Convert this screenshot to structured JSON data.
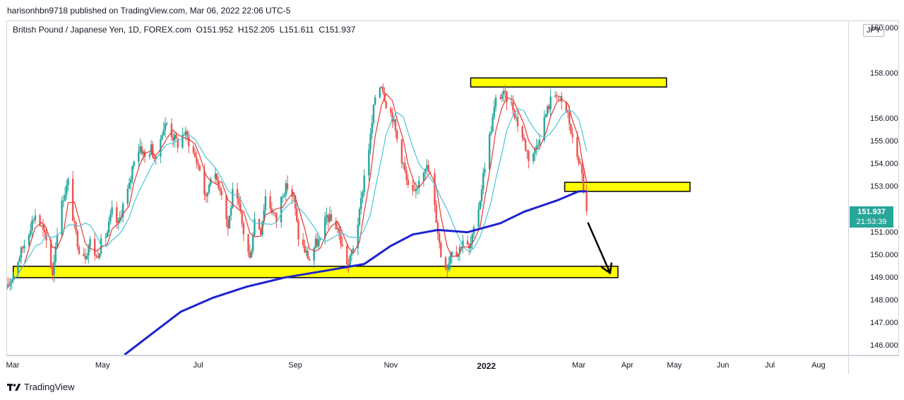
{
  "header": {
    "published_by": "harisonhbn9718 published on TradingView.com, Mar 06, 2022 22:06 UTC-5"
  },
  "legend": {
    "symbol": "British Pound / Japanese Yen, 1D, FOREX.com",
    "ohlc": "O151.952  H152.205  L151.611  C151.937"
  },
  "currency_label": "JPY",
  "last_price": {
    "value": "151.937",
    "countdown": "21:53:39",
    "color": "#26a69a"
  },
  "branding": "TradingView",
  "colors": {
    "up": "#26a69a",
    "down": "#ef5350",
    "ema_fast": "#e53935",
    "ema_slow": "#4dc4d8",
    "ma_long": "#1e22d0",
    "zone_fill": "#ffff00",
    "zone_stroke": "#000000"
  },
  "chart_data": {
    "type": "candlestick",
    "title": "British Pound / Japanese Yen, 1D, FOREX.com",
    "y_axis": {
      "ticks": [
        "160.000",
        "158.000",
        "156.000",
        "155.000",
        "154.000",
        "153.000",
        "151.000",
        "150.000",
        "149.000",
        "148.000",
        "147.000",
        "146.000"
      ],
      "ylim": [
        145.6,
        160.3
      ]
    },
    "x_axis": {
      "ticks": [
        {
          "label": "Mar",
          "date": "2021-03-01",
          "bold": false
        },
        {
          "label": "May",
          "date": "2021-05-01",
          "bold": false
        },
        {
          "label": "Jul",
          "date": "2021-07-01",
          "bold": false
        },
        {
          "label": "Sep",
          "date": "2021-09-01",
          "bold": false
        },
        {
          "label": "Nov",
          "date": "2021-11-01",
          "bold": false
        },
        {
          "label": "2022",
          "date": "2022-01-01",
          "bold": true
        },
        {
          "label": "Mar",
          "date": "2022-03-01",
          "bold": false
        },
        {
          "label": "Apr",
          "date": "2022-04-01",
          "bold": false
        },
        {
          "label": "May",
          "date": "2022-05-01",
          "bold": false
        },
        {
          "label": "Jun",
          "date": "2022-06-01",
          "bold": false
        },
        {
          "label": "Jul",
          "date": "2022-07-01",
          "bold": false
        },
        {
          "label": "Aug",
          "date": "2022-08-01",
          "bold": false
        }
      ],
      "range": [
        "2021-03-01",
        "2022-08-20"
      ]
    },
    "closes": [
      [
        "2021-03-01",
        148.5
      ],
      [
        "2021-03-08",
        149.8
      ],
      [
        "2021-03-12",
        150.5
      ],
      [
        "2021-03-16",
        151.3
      ],
      [
        "2021-03-19",
        151.8
      ],
      [
        "2021-03-23",
        151.2
      ],
      [
        "2021-03-26",
        150.6
      ],
      [
        "2021-03-30",
        149.2
      ],
      [
        "2021-04-02",
        151.1
      ],
      [
        "2021-04-06",
        152.6
      ],
      [
        "2021-04-09",
        153.2
      ],
      [
        "2021-04-13",
        151.2
      ],
      [
        "2021-04-16",
        150.3
      ],
      [
        "2021-04-20",
        150.0
      ],
      [
        "2021-04-23",
        150.6
      ],
      [
        "2021-04-27",
        149.9
      ],
      [
        "2021-04-30",
        150.5
      ],
      [
        "2021-05-04",
        151.0
      ],
      [
        "2021-05-07",
        151.9
      ],
      [
        "2021-05-11",
        151.3
      ],
      [
        "2021-05-14",
        152.2
      ],
      [
        "2021-05-18",
        153.0
      ],
      [
        "2021-05-21",
        154.3
      ],
      [
        "2021-05-25",
        154.8
      ],
      [
        "2021-05-28",
        154.3
      ],
      [
        "2021-06-01",
        154.7
      ],
      [
        "2021-06-04",
        154.1
      ],
      [
        "2021-06-08",
        155.5
      ],
      [
        "2021-06-11",
        155.8
      ],
      [
        "2021-06-15",
        155.2
      ],
      [
        "2021-06-18",
        154.9
      ],
      [
        "2021-06-22",
        155.4
      ],
      [
        "2021-06-25",
        155.0
      ],
      [
        "2021-06-29",
        154.3
      ],
      [
        "2021-07-02",
        153.8
      ],
      [
        "2021-07-06",
        152.4
      ],
      [
        "2021-07-09",
        153.6
      ],
      [
        "2021-07-13",
        153.3
      ],
      [
        "2021-07-16",
        152.8
      ],
      [
        "2021-07-20",
        151.2
      ],
      [
        "2021-07-23",
        152.7
      ],
      [
        "2021-07-27",
        152.1
      ],
      [
        "2021-07-30",
        151.0
      ],
      [
        "2021-08-03",
        149.8
      ],
      [
        "2021-08-06",
        151.6
      ],
      [
        "2021-08-10",
        151.1
      ],
      [
        "2021-08-13",
        152.6
      ],
      [
        "2021-08-17",
        152.0
      ],
      [
        "2021-08-20",
        151.5
      ],
      [
        "2021-08-24",
        152.8
      ],
      [
        "2021-08-27",
        153.0
      ],
      [
        "2021-08-31",
        152.5
      ],
      [
        "2021-09-03",
        150.8
      ],
      [
        "2021-09-07",
        150.2
      ],
      [
        "2021-09-10",
        149.8
      ],
      [
        "2021-09-14",
        150.5
      ],
      [
        "2021-09-17",
        150.6
      ],
      [
        "2021-09-21",
        151.7
      ],
      [
        "2021-09-24",
        151.5
      ],
      [
        "2021-09-28",
        151.2
      ],
      [
        "2021-10-01",
        150.3
      ],
      [
        "2021-10-05",
        149.5
      ],
      [
        "2021-10-08",
        150.4
      ],
      [
        "2021-10-12",
        151.8
      ],
      [
        "2021-10-15",
        153.5
      ],
      [
        "2021-10-19",
        155.2
      ],
      [
        "2021-10-22",
        157.0
      ],
      [
        "2021-10-26",
        157.6
      ],
      [
        "2021-10-29",
        156.7
      ],
      [
        "2021-11-02",
        156.1
      ],
      [
        "2021-11-05",
        155.1
      ],
      [
        "2021-11-09",
        154.0
      ],
      [
        "2021-11-12",
        152.9
      ],
      [
        "2021-11-16",
        152.6
      ],
      [
        "2021-11-19",
        153.4
      ],
      [
        "2021-11-23",
        154.0
      ],
      [
        "2021-11-26",
        153.5
      ],
      [
        "2021-11-30",
        151.6
      ],
      [
        "2021-12-03",
        150.0
      ],
      [
        "2021-12-07",
        149.5
      ],
      [
        "2021-12-10",
        150.3
      ],
      [
        "2021-12-14",
        150.1
      ],
      [
        "2021-12-17",
        150.7
      ],
      [
        "2021-12-21",
        150.2
      ],
      [
        "2021-12-24",
        151.0
      ],
      [
        "2021-12-28",
        152.5
      ],
      [
        "2021-12-31",
        154.0
      ],
      [
        "2022-01-04",
        155.6
      ],
      [
        "2022-01-07",
        156.8
      ],
      [
        "2022-01-11",
        157.1
      ],
      [
        "2022-01-14",
        156.9
      ],
      [
        "2022-01-18",
        156.5
      ],
      [
        "2022-01-21",
        155.8
      ],
      [
        "2022-01-25",
        155.0
      ],
      [
        "2022-01-28",
        154.3
      ],
      [
        "2022-02-01",
        154.6
      ],
      [
        "2022-02-04",
        155.3
      ],
      [
        "2022-02-08",
        156.2
      ],
      [
        "2022-02-11",
        156.8
      ],
      [
        "2022-02-15",
        157.2
      ],
      [
        "2022-02-18",
        156.6
      ],
      [
        "2022-02-22",
        156.2
      ],
      [
        "2022-02-25",
        155.0
      ],
      [
        "2022-03-01",
        154.2
      ],
      [
        "2022-03-03",
        153.5
      ],
      [
        "2022-03-06",
        151.937
      ]
    ],
    "studies": [
      {
        "type": "moving-average",
        "color": "#e53935",
        "length": 3
      },
      {
        "type": "moving-average",
        "color": "#4dc4d8",
        "length": 6
      },
      {
        "type": "moving-average",
        "color": "#1e22d0",
        "source": "estimated",
        "points": [
          [
            "2021-05-15",
            145.6
          ],
          [
            "2021-06-01",
            146.5
          ],
          [
            "2021-06-20",
            147.5
          ],
          [
            "2021-07-10",
            148.1
          ],
          [
            "2021-08-01",
            148.6
          ],
          [
            "2021-08-25",
            149.0
          ],
          [
            "2021-09-20",
            149.3
          ],
          [
            "2021-10-15",
            149.6
          ],
          [
            "2021-11-01",
            150.4
          ],
          [
            "2021-11-15",
            150.9
          ],
          [
            "2021-12-01",
            151.1
          ],
          [
            "2021-12-20",
            151.0
          ],
          [
            "2022-01-10",
            151.4
          ],
          [
            "2022-01-25",
            151.9
          ],
          [
            "2022-02-15",
            152.4
          ],
          [
            "2022-03-01",
            152.8
          ],
          [
            "2022-03-06",
            152.8
          ]
        ]
      }
    ],
    "drawings": [
      {
        "type": "zone",
        "from": "2021-03-05",
        "to": "2022-03-26",
        "low": 149.0,
        "high": 149.5
      },
      {
        "type": "zone",
        "from": "2021-12-22",
        "to": "2022-04-26",
        "low": 157.4,
        "high": 157.8
      },
      {
        "type": "zone",
        "from": "2022-02-20",
        "to": "2022-05-11",
        "low": 152.8,
        "high": 153.2
      },
      {
        "type": "arrow",
        "from": [
          "2022-03-07",
          151.4
        ],
        "to": [
          "2022-03-21",
          149.2
        ]
      }
    ]
  }
}
